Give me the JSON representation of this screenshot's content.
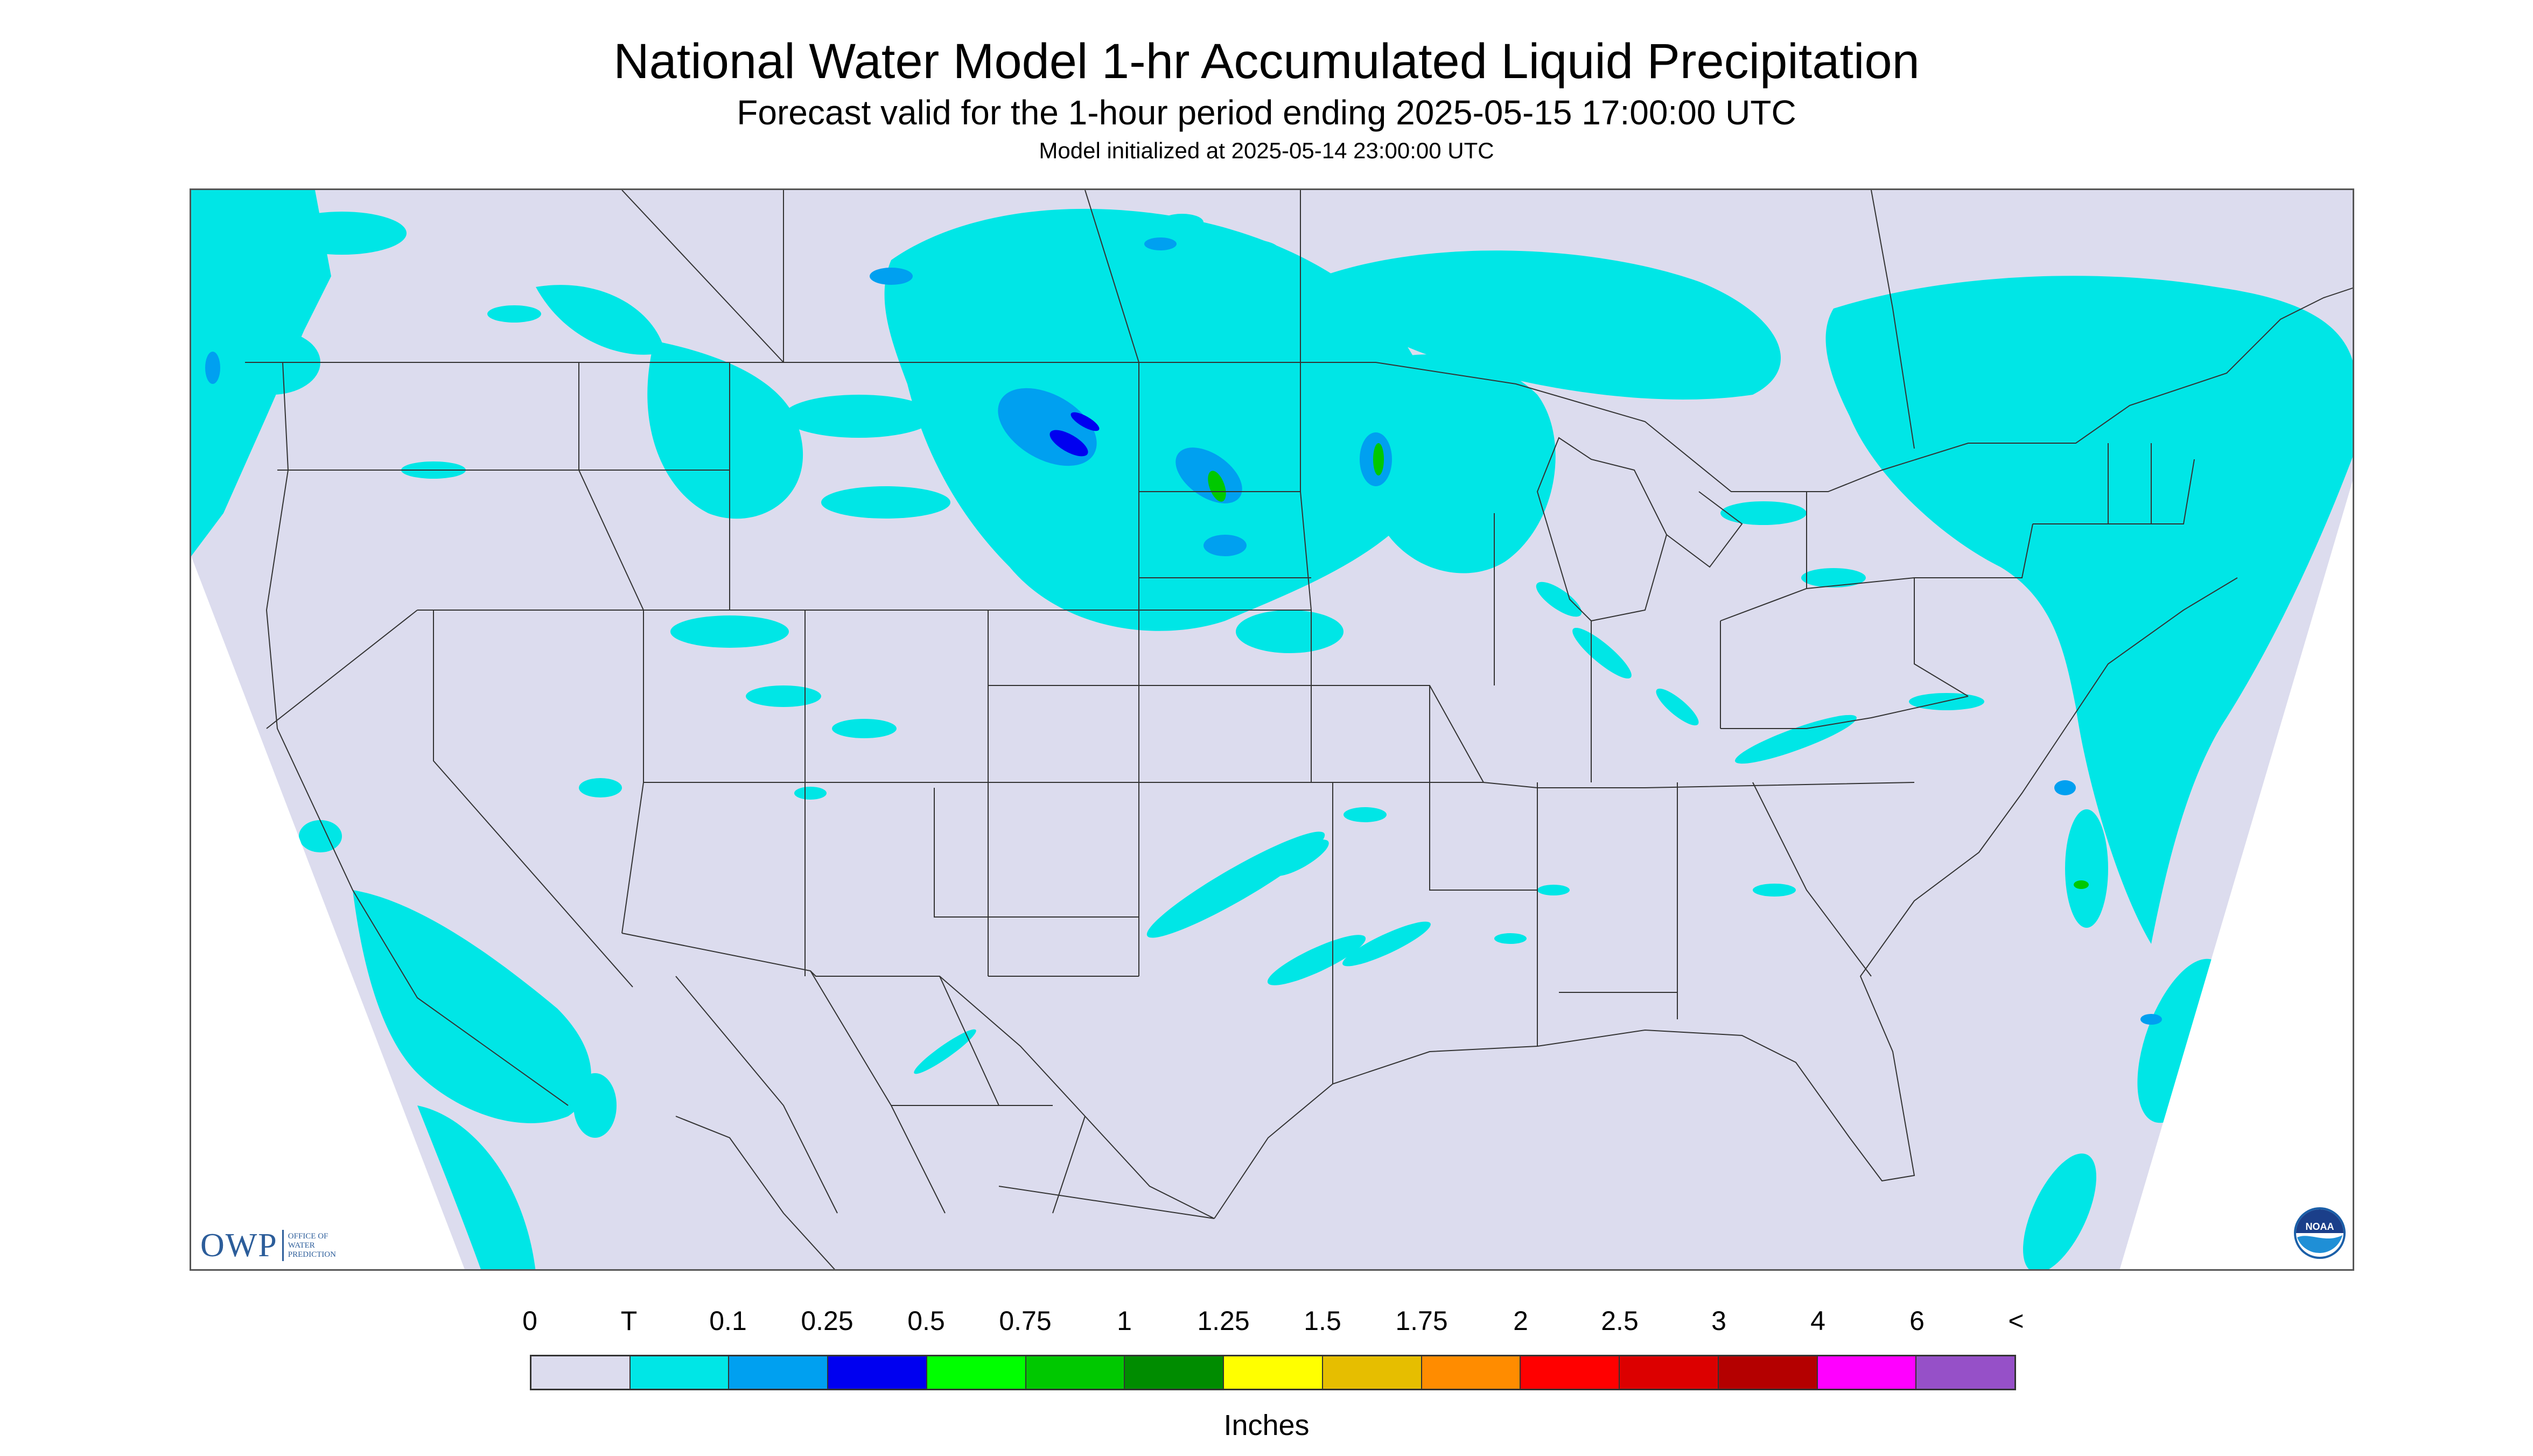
{
  "header": {
    "title": "National Water Model 1-hr Accumulated Liquid Precipitation",
    "subtitle": "Forecast valid for the 1-hour period ending 2025-05-15 17:00:00 UTC",
    "init": "Model initialized at 2025-05-14 23:00:00 UTC"
  },
  "map": {
    "background_color": "#dcdcee",
    "outside_color": "#ffffff",
    "line_color": "#333333"
  },
  "logos": {
    "owp_text": "OWP",
    "owp_sub": [
      "OFFICE OF",
      "WATER",
      "PREDICTION"
    ],
    "noaa_text": "NOAA"
  },
  "legend": {
    "labels": [
      "0",
      "T",
      "0.1",
      "0.25",
      "0.5",
      "0.75",
      "1",
      "1.25",
      "1.5",
      "1.75",
      "2",
      "2.5",
      "3",
      "4",
      "6",
      "<"
    ],
    "colors": [
      "#dcdcee",
      "#00e6e6",
      "#00a0f0",
      "#0000f0",
      "#00ff00",
      "#00c800",
      "#008c00",
      "#ffff00",
      "#e6be00",
      "#ff8c00",
      "#ff0000",
      "#dc0000",
      "#b40000",
      "#ff00ff",
      "#9650c8"
    ],
    "units": "Inches"
  }
}
